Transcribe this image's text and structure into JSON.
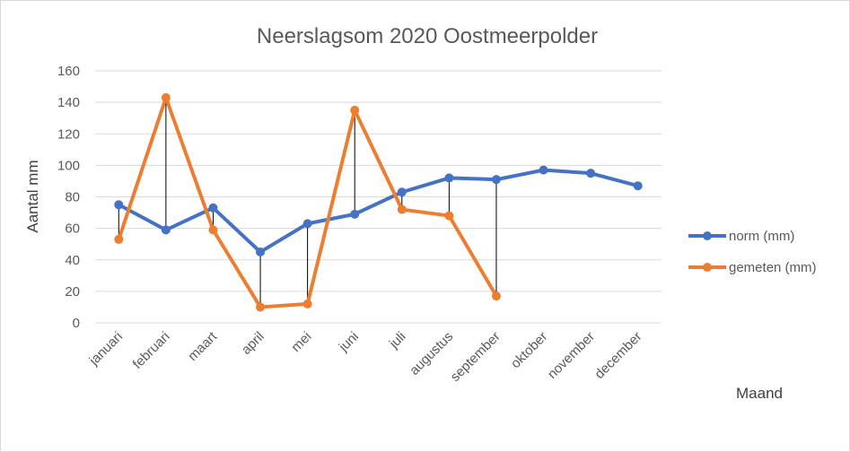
{
  "chart_data": {
    "type": "line",
    "title": "Neerslagsom 2020 Oostmeerpolder",
    "xlabel": "Maand",
    "ylabel": "Aantal mm",
    "ylim": [
      0,
      160
    ],
    "yticks": [
      0,
      20,
      40,
      60,
      80,
      100,
      120,
      140,
      160
    ],
    "grid": true,
    "legend_position": "right",
    "categories": [
      "januari",
      "februari",
      "maart",
      "april",
      "mei",
      "juni",
      "juli",
      "augustus",
      "september",
      "oktober",
      "november",
      "december"
    ],
    "series": [
      {
        "name": "norm (mm)",
        "color": "#4472C4",
        "values": [
          75,
          59,
          73,
          45,
          63,
          69,
          83,
          92,
          91,
          97,
          95,
          87
        ]
      },
      {
        "name": "gemeten (mm)",
        "color": "#ED7D31",
        "values": [
          53,
          143,
          59,
          10,
          12,
          135,
          72,
          68,
          17,
          null,
          null,
          null
        ]
      }
    ],
    "high_low_lines": true
  }
}
